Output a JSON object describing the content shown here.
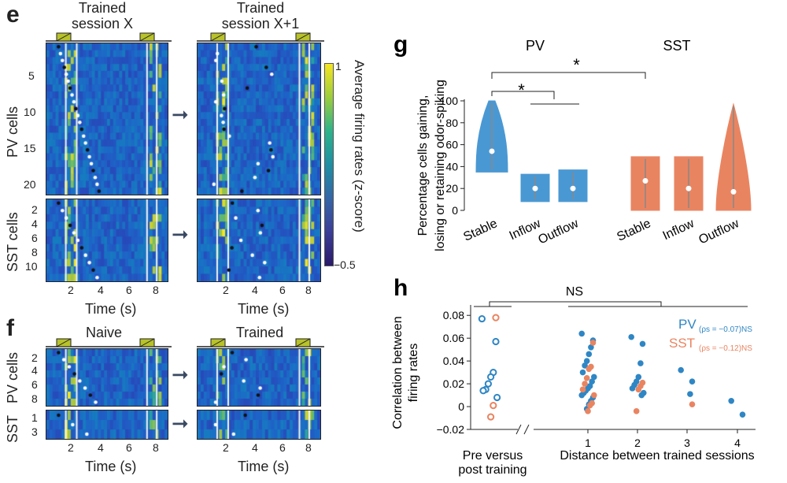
{
  "panel_e": {
    "letter": "e",
    "left_title_1": "Trained",
    "left_title_2": "session X",
    "right_title_1": "Trained",
    "right_title_2": "session X+1",
    "pv_label": "PV cells",
    "sst_label": "SST cells",
    "pv_ticks": [
      "5",
      "10",
      "15",
      "20"
    ],
    "sst_ticks": [
      "2",
      "4",
      "6",
      "8",
      "10"
    ],
    "time_ticks": [
      "2",
      "4",
      "6",
      "8"
    ],
    "xlabel": "Time (s)",
    "colorbar_label": "Average firing rates (z-score)",
    "colorbar_max": "1",
    "colorbar_min": "−0.5"
  },
  "panel_f": {
    "letter": "f",
    "left_title": "Naive",
    "right_title": "Trained",
    "pv_label": "PV cells",
    "sst_label": "SST",
    "pv_ticks": [
      "2",
      "4",
      "6",
      "8"
    ],
    "sst_ticks": [
      "1",
      "3"
    ],
    "time_ticks": [
      "2",
      "4",
      "6",
      "8"
    ],
    "xlabel": "Time (s)"
  },
  "chart_data": [
    {
      "type": "violin",
      "panel": "g",
      "title_pv": "PV",
      "title_sst": "SST",
      "ylabel_1": "Percentage cells gaining,",
      "ylabel_2": "losing or retaining odor-spiking",
      "ylim": [
        0,
        100
      ],
      "yticks": [
        "0",
        "20",
        "40",
        "60",
        "80",
        "100"
      ],
      "categories": [
        "Stable",
        "Inflow",
        "Outflow",
        "Stable",
        "Inflow",
        "Outflow"
      ],
      "groups": [
        "PV",
        "PV",
        "PV",
        "SST",
        "SST",
        "SST"
      ],
      "colors": {
        "PV": "#4a98d3",
        "SST": "#e98461"
      },
      "violins": [
        {
          "group": "PV",
          "category": "Stable",
          "min": 35,
          "max": 100,
          "median": 54
        },
        {
          "group": "PV",
          "category": "Inflow",
          "min": 8,
          "max": 33,
          "median": 20
        },
        {
          "group": "PV",
          "category": "Outflow",
          "min": 8,
          "max": 37,
          "median": 20
        },
        {
          "group": "SST",
          "category": "Stable",
          "min": 0,
          "max": 49,
          "median": 27
        },
        {
          "group": "SST",
          "category": "Inflow",
          "min": 0,
          "max": 49,
          "median": 20
        },
        {
          "group": "SST",
          "category": "Outflow",
          "min": 0,
          "max": 97,
          "median": 17
        }
      ],
      "significance": [
        "*",
        "*"
      ]
    },
    {
      "type": "scatter",
      "panel": "h",
      "ylabel_1": "Correlation between",
      "ylabel_2": "firing rates",
      "xlabel": "Distance between trained sessions",
      "pre_label_1": "Pre versus",
      "pre_label_2": "post training",
      "xticks": [
        "1",
        "2",
        "3",
        "4"
      ],
      "yticks": [
        "−0.02",
        "0",
        "0.02",
        "0.04",
        "0.06",
        "0.08"
      ],
      "ylim": [
        -0.02,
        0.085
      ],
      "significance": "NS",
      "legend_pv_name": "PV",
      "legend_pv_stat": "(ρs = −0.07)NS",
      "legend_sst_name": "SST",
      "legend_sst_stat": "(ρs = −0.12)NS",
      "series": [
        {
          "name": "PV",
          "color": "#2f86c4",
          "pre": [
            0.077,
            0.057,
            0.03,
            0.026,
            0.02,
            0.015,
            0.014,
            0.008
          ],
          "d1": [
            0.064,
            0.058,
            0.052,
            0.046,
            0.04,
            0.036,
            0.03,
            0.026,
            0.022,
            0.018,
            0.016,
            0.014,
            0.012,
            0.01,
            0.008,
            0.005,
            0.002,
            -0.002
          ],
          "d2": [
            0.061,
            0.055,
            0.038,
            0.026,
            0.022,
            0.019,
            0.016,
            0.012,
            0.01
          ],
          "d3": [
            0.032,
            0.022,
            0.011
          ],
          "d4": [
            0.005,
            -0.007
          ]
        },
        {
          "name": "SST",
          "color": "#e98461",
          "pre": [
            0.078,
            0.001,
            -0.009
          ],
          "d1": [
            0.056,
            0.035,
            0.033,
            0.025,
            0.02,
            0.015,
            0.01,
            0.003,
            0.001,
            -0.004
          ],
          "d2": [
            0.021,
            0.018,
            0.015,
            -0.004
          ],
          "d3": [
            0.002
          ],
          "d4": []
        }
      ]
    }
  ]
}
